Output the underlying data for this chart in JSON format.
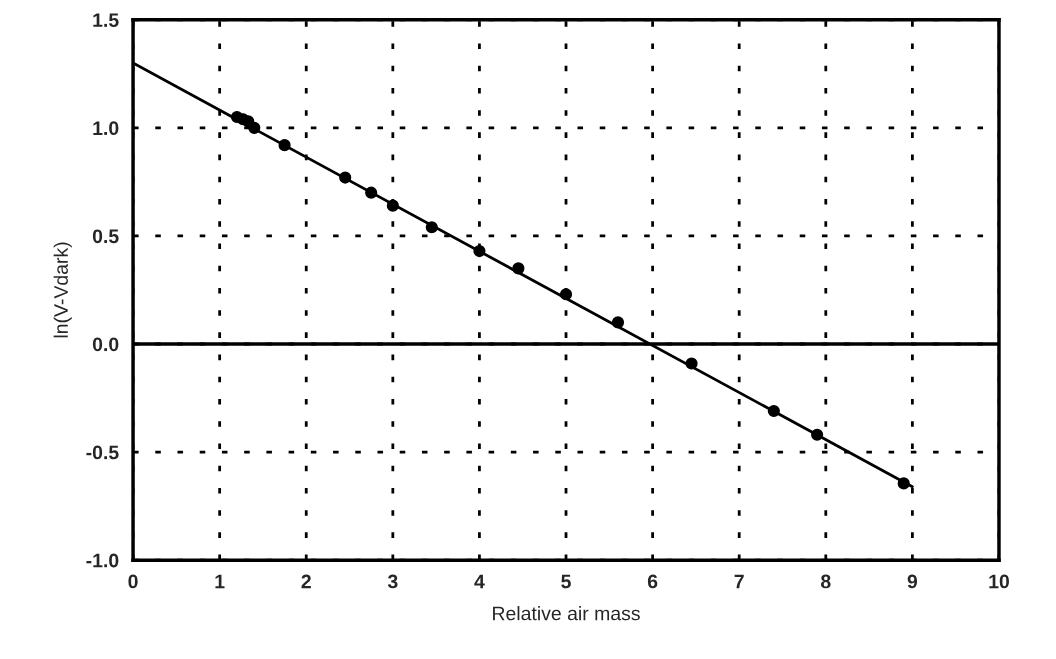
{
  "chart_data": {
    "type": "scatter",
    "xlabel": "Relative air mass",
    "ylabel": "ln(V-Vdark)",
    "series": [
      {
        "color": "#000000",
        "marker": "circle",
        "x": [
          1.2,
          1.27,
          1.33,
          1.4,
          1.75,
          2.45,
          2.75,
          3.0,
          3.45,
          4.0,
          4.45,
          5.0,
          5.6,
          6.45,
          7.4,
          7.9,
          8.9
        ],
        "values": [
          1.05,
          1.04,
          1.03,
          1.0,
          0.92,
          0.77,
          0.7,
          0.64,
          0.54,
          0.43,
          0.35,
          0.23,
          0.1,
          -0.09,
          -0.31,
          -0.42,
          -0.645
        ]
      },
      {
        "type": "line",
        "color": "#000000",
        "marker": "none",
        "x": [
          0,
          9
        ],
        "values": [
          1.3,
          -0.66
        ]
      }
    ],
    "xlim": [
      0,
      10
    ],
    "xticks": [
      0,
      1,
      2,
      3,
      4,
      5,
      6,
      7,
      8,
      9,
      10
    ],
    "ylim": [
      -1.0,
      1.5
    ],
    "yticks": [
      {
        "value": 1.5,
        "label": "1.5"
      },
      {
        "value": 1.0,
        "label": "1.0"
      },
      {
        "value": 0.5,
        "label": "0.5"
      },
      {
        "value": 0.0,
        "label": "0.0"
      },
      {
        "value": -0.5,
        "label": "-0.5"
      },
      {
        "value": -1.0,
        "label": "-1.0"
      }
    ],
    "grid": true,
    "ref_lines": [
      {
        "axis": "y",
        "value": 0,
        "color": "#000000",
        "line_style": "solid"
      }
    ]
  }
}
